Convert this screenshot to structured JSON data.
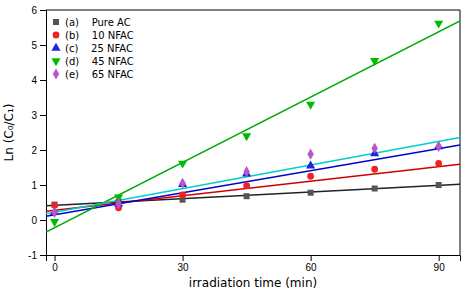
{
  "chart_data": {
    "type": "scatter",
    "xlabel": "irradiation time (min)",
    "ylabel": "Ln (C₀/C₁)",
    "xlim": [
      -2,
      95
    ],
    "ylim": [
      -1,
      6
    ],
    "xticks": [
      0,
      30,
      60,
      90
    ],
    "yticks": [
      -1,
      0,
      1,
      2,
      3,
      4,
      5,
      6
    ],
    "grid": false,
    "legend": "upper left",
    "x": [
      0,
      15,
      30,
      45,
      60,
      75,
      90
    ],
    "series": [
      {
        "name": "(a)    Pure AC",
        "color": "#555555",
        "marker": "square",
        "values": [
          0.44,
          0.52,
          0.58,
          0.68,
          0.78,
          0.9,
          1.0
        ],
        "fit": {
          "color": "#222222",
          "x": [
            -2,
            95
          ],
          "values": [
            0.4074,
            1.0185
          ]
        }
      },
      {
        "name": "(b)    10 NFAC",
        "color": "#ee2222",
        "marker": "circle",
        "values": [
          0.42,
          0.35,
          0.72,
          0.98,
          1.25,
          1.45,
          1.62
        ],
        "fit": {
          "color": "#cc0000",
          "x": [
            -2,
            95
          ],
          "values": [
            0.2524,
            1.591
          ]
        }
      },
      {
        "name": "(c)    25 NFAC",
        "color": "#2222dd",
        "marker": "triangle-up",
        "values": [
          0.22,
          0.46,
          1.02,
          1.32,
          1.55,
          1.9,
          2.1
        ],
        "fit": {
          "color": "#0000cc",
          "x": [
            -2,
            95
          ],
          "values": [
            0.108,
            2.145
          ]
        }
      },
      {
        "name": "(d)    45 NFAC",
        "color": "#00bb00",
        "marker": "triangle-down",
        "values": [
          -0.05,
          0.65,
          1.62,
          2.4,
          3.3,
          4.55,
          5.62
        ],
        "fit": {
          "color": "#00aa00",
          "x": [
            -2,
            95
          ],
          "values": [
            -0.3444,
            5.689
          ]
        }
      },
      {
        "name": "(e)    65 NFAC",
        "color": "#bb55cc",
        "marker": "diamond",
        "values": [
          0.22,
          0.46,
          1.05,
          1.38,
          1.88,
          2.05,
          2.1
        ],
        "fit": {
          "color": "#00cccc",
          "x": [
            -2,
            95
          ],
          "values": [
            0.175,
            2.3575
          ]
        }
      }
    ]
  }
}
